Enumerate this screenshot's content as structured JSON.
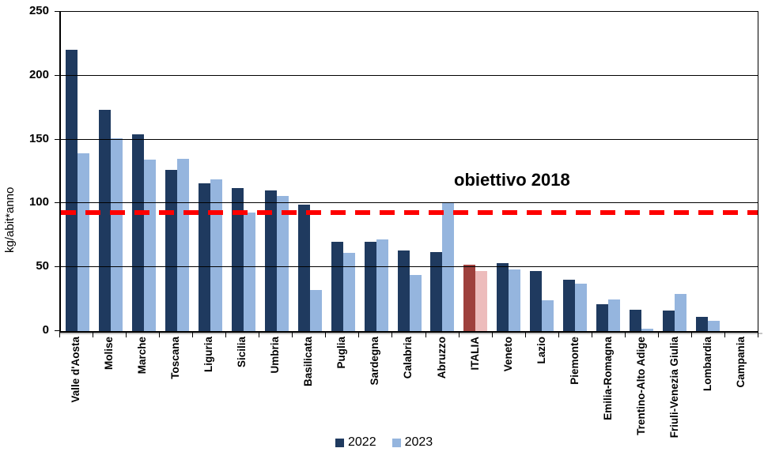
{
  "chart_data": {
    "type": "bar",
    "title": "",
    "xlabel": "",
    "ylabel": "kg/abit*anno",
    "ylim": [
      0,
      250
    ],
    "ytick_step": 50,
    "yticks": [
      0,
      50,
      100,
      150,
      200,
      250
    ],
    "grid": true,
    "legend_position": "bottom",
    "categories": [
      "Valle d'Aosta",
      "Molise",
      "Marche",
      "Toscana",
      "Liguria",
      "Sicilia",
      "Umbria",
      "Basilicata",
      "Puglia",
      "Sardegna",
      "Calabria",
      "Abruzzo",
      "ITALIA",
      "Veneto",
      "Lazio",
      "Piemonte",
      "Emilia-Romagna",
      "Trentino-Alto Adige",
      "Friuli-Venezia Giulia",
      "Lombardia",
      "Campania"
    ],
    "series": [
      {
        "name": "2022",
        "color": "#1F3A5F",
        "values": [
          220,
          173,
          154,
          126,
          116,
          112,
          110,
          99,
          70,
          70,
          63,
          62,
          52,
          53,
          47,
          40,
          21,
          17,
          16,
          11,
          0
        ]
      },
      {
        "name": "2023",
        "color": "#95B5DE",
        "values": [
          139,
          151,
          134,
          135,
          119,
          93,
          106,
          32,
          61,
          72,
          44,
          101,
          47,
          48,
          24,
          37,
          25,
          2,
          29,
          8,
          0
        ]
      }
    ],
    "highlight": {
      "category": "ITALIA",
      "colors": [
        "#9E403C",
        "#EDBCBC"
      ]
    },
    "target_line": {
      "label": "obiettivo 2018",
      "value": 93,
      "color": "#FE0000",
      "style": "dashed"
    }
  }
}
